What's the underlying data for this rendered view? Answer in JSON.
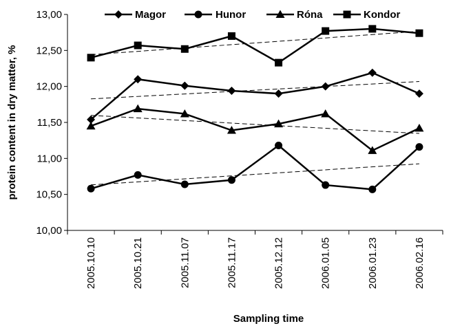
{
  "chart_data": {
    "type": "line",
    "title": "",
    "xlabel": "Sampling time",
    "ylabel": "protein content in dry matter, %",
    "categories": [
      "2005.10.10",
      "2005.10.21",
      "2005.11.07",
      "2005.11.17",
      "2005.12.12",
      "2006.01.05",
      "2006.01.23",
      "2006.02.16"
    ],
    "y_tick_labels": [
      "10,00",
      "10,50",
      "11,00",
      "11,50",
      "12,00",
      "12,50",
      "13,00"
    ],
    "ylim": [
      10.0,
      13.0
    ],
    "y_step": 0.5,
    "grid": false,
    "legend_position": "top",
    "trendlines": true,
    "series": [
      {
        "name": "Magor",
        "marker": "diamond",
        "values": [
          11.54,
          12.1,
          12.01,
          11.94,
          11.9,
          12.0,
          12.19,
          11.9
        ]
      },
      {
        "name": "Hunor",
        "marker": "circle",
        "values": [
          10.58,
          10.77,
          10.64,
          10.7,
          11.18,
          10.63,
          10.57,
          11.16
        ]
      },
      {
        "name": "Róna",
        "marker": "triangle",
        "values": [
          11.45,
          11.69,
          11.62,
          11.39,
          11.48,
          11.62,
          11.11,
          11.42
        ]
      },
      {
        "name": "Kondor",
        "marker": "square",
        "values": [
          12.4,
          12.57,
          12.52,
          12.7,
          12.33,
          12.77,
          12.8,
          12.74
        ]
      }
    ]
  }
}
